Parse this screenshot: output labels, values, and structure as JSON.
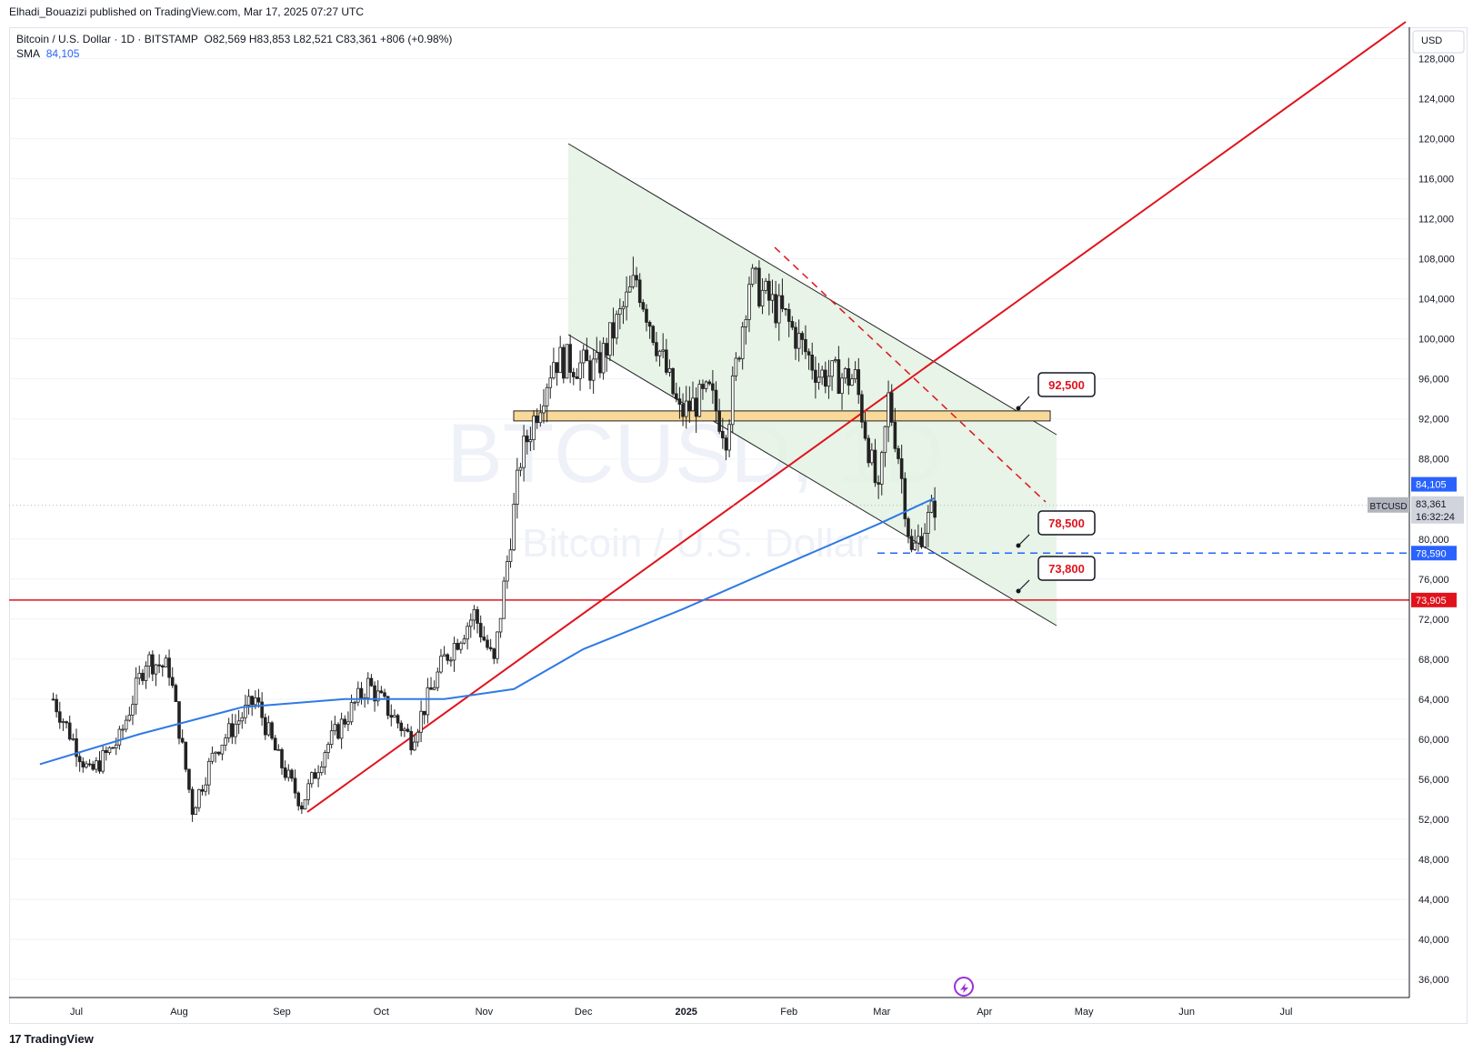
{
  "credit": "Elhadi_Bouazizi published on TradingView.com, Mar 17, 2025 07:27 UTC",
  "legend": {
    "line1_symbol": "Bitcoin / U.S. Dollar · 1D · BITSTAMP",
    "line1_ohlc": "O82,569  H83,853  L82,521  C83,361  +806 (+0.98%)",
    "sma_label": "SMA",
    "sma_value": "84,105"
  },
  "watermark": {
    "line1": "BTCUSD, 1D",
    "line2": "Bitcoin / U.S. Dollar"
  },
  "currency": "USD",
  "footer": {
    "logo_text": "TradingView"
  },
  "colors": {
    "red": "#e0131d",
    "blue": "#2962ff",
    "sma": "#2f7ae5",
    "channel_fill": "#e3f2e3",
    "zone_fill": "#f9d99a",
    "zone_stroke": "#222222",
    "candle": "#222222",
    "grid": "#f0f3fa"
  },
  "chart_data": {
    "type": "candlestick",
    "symbol": "BTCUSD",
    "timeframe": "1D",
    "y_ticks": [
      36000,
      40000,
      44000,
      48000,
      52000,
      56000,
      60000,
      64000,
      68000,
      72000,
      76000,
      80000,
      88000,
      92000,
      96000,
      100000,
      104000,
      108000,
      112000,
      116000,
      120000,
      124000,
      128000
    ],
    "x_ticks": [
      "Jul",
      "Aug",
      "Sep",
      "Oct",
      "Nov",
      "Dec",
      "2025",
      "Feb",
      "Mar",
      "Apr",
      "May",
      "Jun",
      "Jul"
    ],
    "ylim": [
      33000,
      130000
    ],
    "last_price": {
      "label": "BTCUSD",
      "value": "83,361",
      "countdown": "16:32:24"
    },
    "sma_tag": "84,105",
    "level_tags": [
      {
        "value": "78,590",
        "color": "#2962ff"
      },
      {
        "value": "73,905",
        "color": "#e0131d"
      }
    ],
    "callouts": [
      "92,500",
      "78,500",
      "73,800"
    ],
    "resistance_zone": [
      91800,
      92800
    ],
    "horizontal_support": 73905,
    "dashed_support": 78590,
    "price_path": [
      [
        "2024-06-24",
        64000
      ],
      [
        "2024-07-05",
        56500
      ],
      [
        "2024-07-14",
        60000
      ],
      [
        "2024-07-22",
        68000
      ],
      [
        "2024-07-29",
        67000
      ],
      [
        "2024-08-05",
        53000
      ],
      [
        "2024-08-12",
        59000
      ],
      [
        "2024-08-24",
        64000
      ],
      [
        "2024-08-31",
        58000
      ],
      [
        "2024-09-07",
        53500
      ],
      [
        "2024-09-14",
        59000
      ],
      [
        "2024-09-27",
        65500
      ],
      [
        "2024-10-10",
        60000
      ],
      [
        "2024-10-20",
        68000
      ],
      [
        "2024-10-29",
        72500
      ],
      [
        "2024-11-04",
        67500
      ],
      [
        "2024-11-12",
        88000
      ],
      [
        "2024-11-22",
        98000
      ],
      [
        "2024-12-05",
        97000
      ],
      [
        "2024-12-17",
        106000
      ],
      [
        "2024-12-30",
        92500
      ],
      [
        "2025-01-08",
        94500
      ],
      [
        "2025-01-13",
        90500
      ],
      [
        "2025-01-20",
        106000
      ],
      [
        "2025-01-31",
        102000
      ],
      [
        "2025-02-10",
        96500
      ],
      [
        "2025-02-21",
        96000
      ],
      [
        "2025-02-28",
        84000
      ],
      [
        "2025-03-03",
        94000
      ],
      [
        "2025-03-06",
        88500
      ],
      [
        "2025-03-10",
        78500
      ],
      [
        "2025-03-17",
        83361
      ]
    ],
    "sma_path": [
      [
        "2024-06-20",
        57500
      ],
      [
        "2024-07-20",
        60500
      ],
      [
        "2024-08-20",
        63200
      ],
      [
        "2024-09-20",
        64000
      ],
      [
        "2024-10-20",
        64000
      ],
      [
        "2024-11-10",
        65000
      ],
      [
        "2024-12-01",
        69000
      ],
      [
        "2024-12-31",
        73000
      ],
      [
        "2025-01-31",
        77500
      ],
      [
        "2025-02-28",
        81500
      ],
      [
        "2025-03-17",
        84105
      ]
    ]
  }
}
